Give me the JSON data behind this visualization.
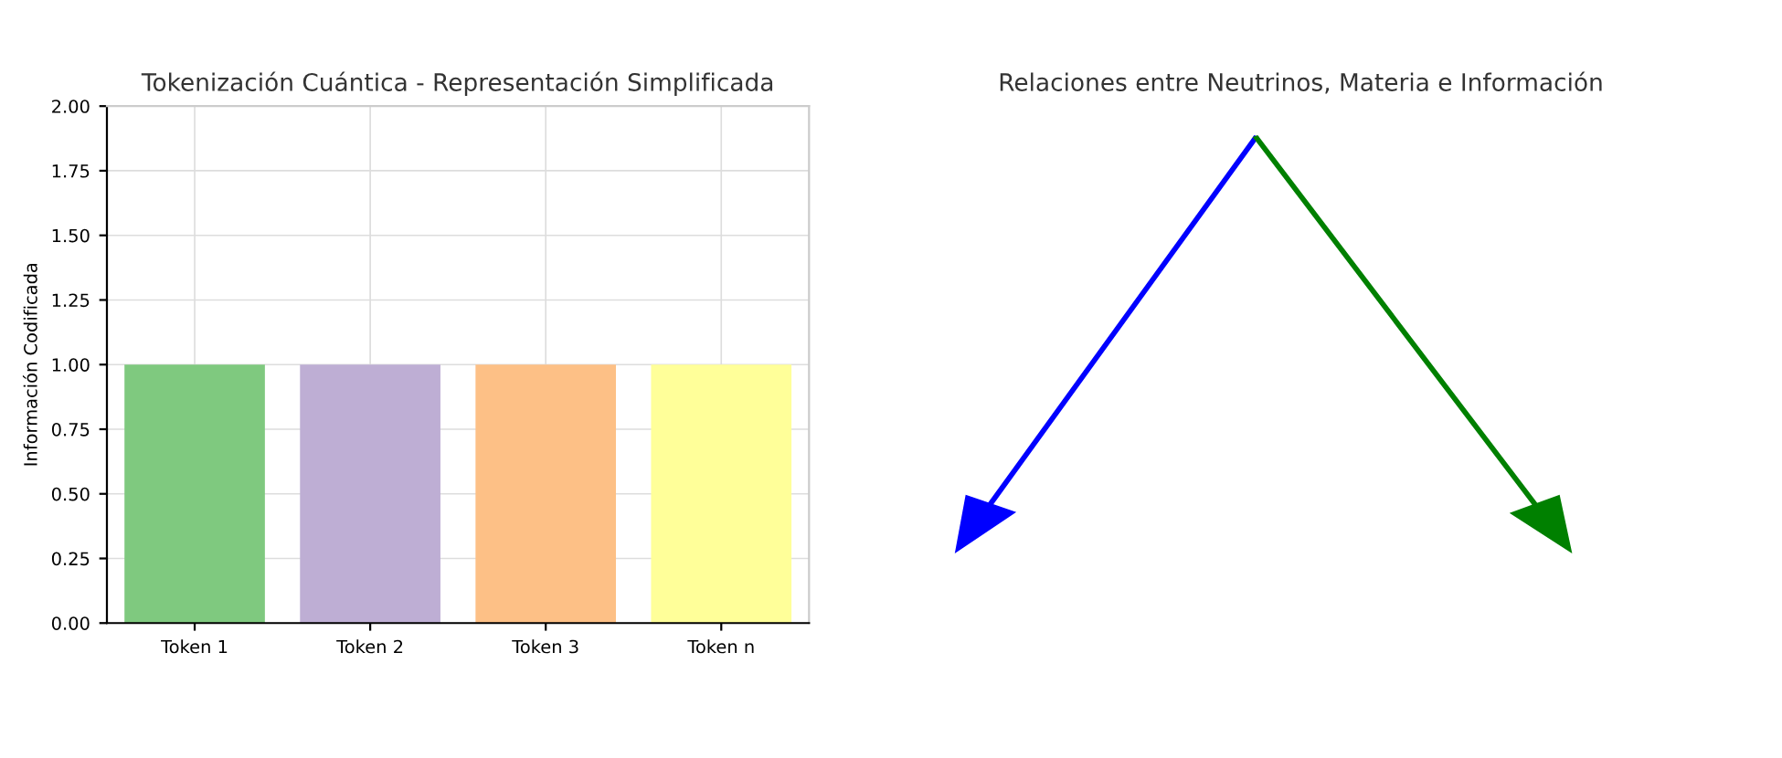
{
  "chart_data": [
    {
      "type": "bar",
      "title": "Tokenización Cuántica - Representación Simplificada",
      "ylabel": "Información Codificada",
      "categories": [
        "Token 1",
        "Token 2",
        "Token 3",
        "Token n"
      ],
      "values": [
        1.0,
        1.0,
        1.0,
        1.0
      ],
      "colors": [
        "#7fc97f",
        "#beaed4",
        "#fdc086",
        "#ffff99"
      ],
      "ylim": [
        0,
        2
      ],
      "yticks": [
        {
          "value": 0,
          "label": "0.00"
        },
        {
          "value": 0.25,
          "label": "0.25"
        },
        {
          "value": 0.5,
          "label": "0.50"
        },
        {
          "value": 0.75,
          "label": "0.75"
        },
        {
          "value": 1,
          "label": "1.00"
        },
        {
          "value": 1.25,
          "label": "1.25"
        },
        {
          "value": 1.5,
          "label": "1.50"
        },
        {
          "value": 1.75,
          "label": "1.75"
        },
        {
          "value": 2,
          "label": "2.00"
        }
      ],
      "grid": true
    },
    {
      "type": "other",
      "title": "Relaciones entre Neutrinos, Materia e Información"
    }
  ]
}
